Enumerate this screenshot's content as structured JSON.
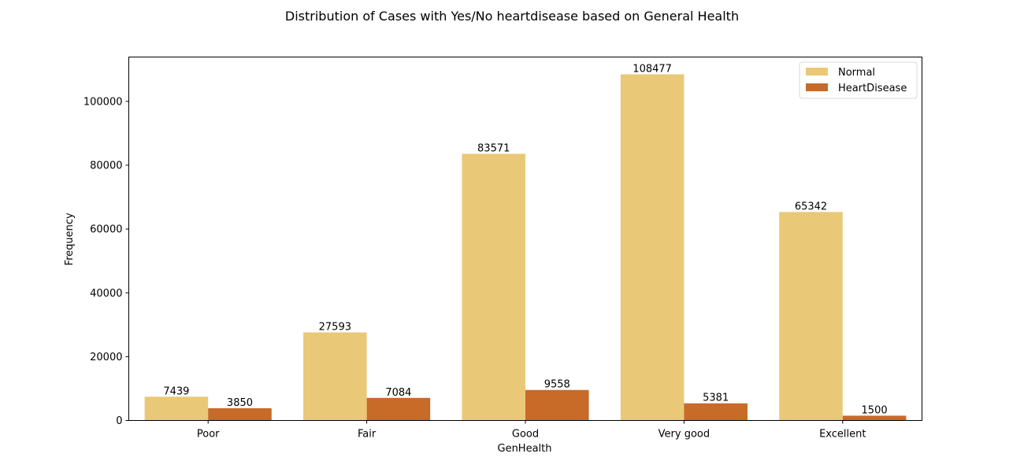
{
  "chart_data": {
    "type": "bar",
    "title": "Distribution of Cases with Yes/No heartdisease based on General Health",
    "xlabel": "GenHealth",
    "ylabel": "Frequency",
    "categories": [
      "Poor",
      "Fair",
      "Good",
      "Very good",
      "Excellent"
    ],
    "series": [
      {
        "name": "Normal",
        "color": "#E9C877",
        "values": [
          7439,
          27593,
          83571,
          108477,
          65342
        ]
      },
      {
        "name": "HeartDisease",
        "color": "#C86A28",
        "values": [
          3850,
          7084,
          9558,
          5381,
          1500
        ]
      }
    ],
    "ylim": [
      0,
      113900
    ],
    "yticks": [
      0,
      20000,
      40000,
      60000,
      80000,
      100000
    ],
    "legend_position": "top-right",
    "grid": false
  }
}
